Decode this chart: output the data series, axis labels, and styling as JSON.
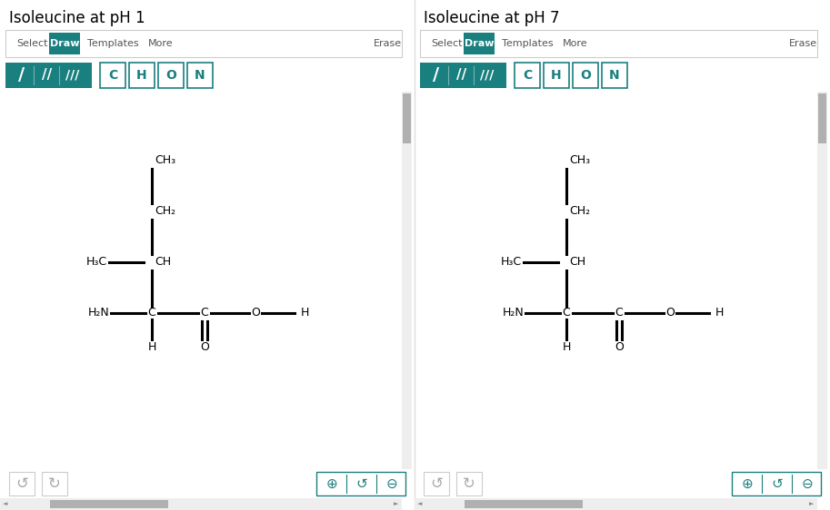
{
  "title_left": "Isoleucine at pH 1",
  "title_right": "Isoleucine at pH 7",
  "bg_color": "#ffffff",
  "panel_border_color": "#cccccc",
  "teal_color": "#1a7f7f",
  "text_color": "#000000",
  "gray_text": "#555555",
  "gray_btn": "#cccccc",
  "gray_scroll": "#b0b0b0",
  "gray_scroll_bg": "#eeeeee",
  "bond_syms": [
    "/",
    "//",
    "///"
  ],
  "atom_labels": [
    "C",
    "H",
    "O",
    "N"
  ],
  "toolbar_left_items": [
    "Select",
    "Templates",
    "More"
  ],
  "toolbar_right_item": "Erase"
}
